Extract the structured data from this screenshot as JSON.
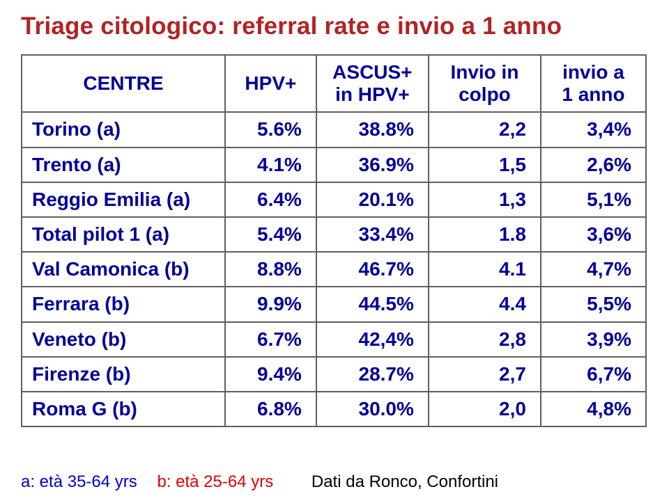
{
  "title": "Triage citologico: referral rate e invio a 1 anno",
  "title_color": "#b22222",
  "text_color": "#00009b",
  "border_color": "#5f5f5f",
  "background_color": "#ffffff",
  "table": {
    "columns": [
      {
        "key": "centre",
        "label_line1": "CENTRE",
        "label_line2": ""
      },
      {
        "key": "hpv",
        "label_line1": "HPV+",
        "label_line2": ""
      },
      {
        "key": "ascus",
        "label_line1": "ASCUS+",
        "label_line2": "in HPV+"
      },
      {
        "key": "colpo",
        "label_line1": "Invio in",
        "label_line2": "colpo"
      },
      {
        "key": "anno",
        "label_line1": "invio a",
        "label_line2": "1 anno"
      }
    ],
    "rows": [
      {
        "centre": "Torino (a)",
        "hpv": "5.6%",
        "ascus": "38.8%",
        "colpo": "2,2",
        "anno": "3,4%"
      },
      {
        "centre": "Trento (a)",
        "hpv": "4.1%",
        "ascus": "36.9%",
        "colpo": "1,5",
        "anno": "2,6%"
      },
      {
        "centre": "Reggio Emilia (a)",
        "hpv": "6.4%",
        "ascus": "20.1%",
        "colpo": "1,3",
        "anno": "5,1%"
      },
      {
        "centre": "Total pilot 1 (a)",
        "hpv": "5.4%",
        "ascus": "33.4%",
        "colpo": "1.8",
        "anno": "3,6%"
      },
      {
        "centre": "Val Camonica (b)",
        "hpv": "8.8%",
        "ascus": "46.7%",
        "colpo": "4.1",
        "anno": "4,7%"
      },
      {
        "centre": "Ferrara (b)",
        "hpv": "9.9%",
        "ascus": "44.5%",
        "colpo": "4.4",
        "anno": "5,5%"
      },
      {
        "centre": "Veneto (b)",
        "hpv": "6.7%",
        "ascus": "42,4%",
        "colpo": "2,8",
        "anno": "3,9%"
      },
      {
        "centre": "Firenze (b)",
        "hpv": "9.4%",
        "ascus": "28.7%",
        "colpo": "2,7",
        "anno": "6,7%"
      },
      {
        "centre": "Roma G (b)",
        "hpv": "6.8%",
        "ascus": "30.0%",
        "colpo": "2,0",
        "anno": "4,8%"
      }
    ]
  },
  "footer": {
    "note_a": "a: età 35-64 yrs",
    "note_b": "b: età 25-64 yrs",
    "source": "Dati da Ronco, Confortini",
    "color_a": "#0000cc",
    "color_b": "#e00000",
    "color_src": "#000000"
  },
  "font_sizes": {
    "title": 35,
    "cell": 28,
    "footer": 24
  }
}
